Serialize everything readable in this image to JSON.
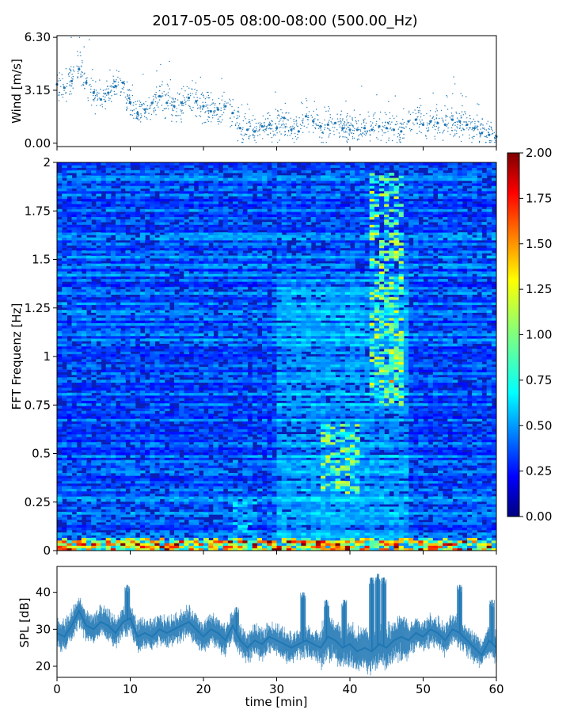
{
  "title": "2017-05-05 08:00-08:00 (500.00_Hz)",
  "chart_data": [
    {
      "type": "scatter",
      "name": "wind",
      "ylabel": "Wind [m/s]",
      "ylim": [
        -0.2,
        6.4
      ],
      "yticks": [
        0.0,
        3.15,
        6.3
      ],
      "ytick_labels": [
        "0.00",
        "3.15",
        "6.30"
      ],
      "xlim": [
        0,
        60
      ],
      "color": "#1f77b4",
      "x": [
        0,
        1,
        2,
        3,
        4,
        5,
        6,
        7,
        8,
        9,
        10,
        11,
        12,
        13,
        14,
        15,
        16,
        17,
        18,
        19,
        20,
        21,
        22,
        23,
        24,
        25,
        26,
        27,
        28,
        29,
        30,
        31,
        32,
        33,
        34,
        35,
        36,
        37,
        38,
        39,
        40,
        41,
        42,
        43,
        44,
        45,
        46,
        47,
        48,
        49,
        50,
        51,
        52,
        53,
        54,
        55,
        56,
        57,
        58,
        59,
        60
      ],
      "y": [
        3.5,
        3.3,
        3.7,
        4.4,
        3.6,
        3.0,
        2.6,
        3.0,
        3.4,
        3.6,
        2.4,
        1.8,
        2.0,
        2.4,
        2.8,
        2.4,
        2.2,
        2.4,
        2.7,
        2.5,
        2.2,
        1.9,
        2.0,
        2.2,
        1.8,
        0.9,
        0.8,
        0.7,
        1.0,
        1.1,
        0.9,
        1.5,
        0.8,
        0.7,
        1.6,
        1.3,
        1.0,
        1.1,
        1.2,
        0.9,
        0.8,
        0.8,
        0.9,
        0.8,
        1.0,
        0.9,
        0.8,
        0.7,
        1.3,
        1.4,
        1.1,
        1.3,
        1.2,
        1.1,
        1.4,
        1.3,
        1.1,
        0.9,
        0.6,
        0.5,
        0.4
      ]
    },
    {
      "type": "heatmap",
      "name": "fft-spectrogram",
      "ylabel": "FFT Frequenz [Hz]",
      "ylim": [
        0,
        2
      ],
      "yticks": [
        0,
        0.25,
        0.5,
        0.75,
        1,
        1.25,
        1.5,
        1.75,
        2
      ],
      "ytick_labels": [
        "0",
        "0.25",
        "0.5",
        "0.75",
        "1",
        "1.25",
        "1.5",
        "1.75",
        "2"
      ],
      "xlim": [
        0,
        60
      ],
      "colormap": "jet",
      "colorbar": {
        "range": [
          0,
          2
        ],
        "ticks": [
          "0.00",
          "0.25",
          "0.50",
          "0.75",
          "1.00",
          "1.25",
          "1.50",
          "1.75",
          "2.00"
        ]
      },
      "hotspots": [
        {
          "t": [
            36,
            41
          ],
          "f": [
            0.3,
            0.65
          ],
          "level": 0.95
        },
        {
          "t": [
            43,
            47
          ],
          "f": [
            0.75,
            1.95
          ],
          "level": 1.0
        },
        {
          "t": [
            44,
            46
          ],
          "f": [
            0.85,
            0.95
          ],
          "level": 1.3
        },
        {
          "t": [
            24,
            27
          ],
          "f": [
            0.0,
            0.25
          ],
          "level": 0.55
        },
        {
          "t": [
            0,
            60
          ],
          "f": [
            0.0,
            0.06
          ],
          "level": 1.2
        }
      ]
    },
    {
      "type": "line",
      "name": "spl",
      "ylabel": "SPL [dB]",
      "xlabel": "time [min]",
      "xlim": [
        0,
        60
      ],
      "ylim": [
        17,
        47
      ],
      "yticks": [
        20,
        30,
        40
      ],
      "ytick_labels": [
        "20",
        "30",
        "40"
      ],
      "xticks": [
        0,
        10,
        20,
        30,
        40,
        50,
        60
      ],
      "xtick_labels": [
        "0",
        "10",
        "20",
        "30",
        "40",
        "50",
        "60"
      ],
      "color": "#1f77b4",
      "x": [
        0,
        1,
        2,
        3,
        4,
        5,
        6,
        7,
        8,
        9,
        10,
        11,
        12,
        13,
        14,
        15,
        16,
        17,
        18,
        19,
        20,
        21,
        22,
        23,
        24,
        25,
        26,
        27,
        28,
        29,
        30,
        31,
        32,
        33,
        34,
        35,
        36,
        37,
        38,
        39,
        40,
        41,
        42,
        43,
        44,
        45,
        46,
        47,
        48,
        49,
        50,
        51,
        52,
        53,
        54,
        55,
        56,
        57,
        58,
        59,
        60
      ],
      "y": [
        29,
        28,
        31,
        35,
        31,
        30,
        32,
        31,
        29,
        32,
        33,
        28,
        29,
        28,
        30,
        29,
        30,
        31,
        32,
        30,
        28,
        30,
        29,
        27,
        31,
        27,
        25,
        27,
        26,
        28,
        27,
        26,
        25,
        26,
        27,
        26,
        25,
        28,
        27,
        25,
        26,
        24,
        25,
        24,
        26,
        25,
        27,
        28,
        27,
        29,
        28,
        30,
        29,
        27,
        30,
        29,
        27,
        25,
        23,
        27,
        25
      ],
      "spikes": [
        {
          "x": 9.6,
          "peak": 42
        },
        {
          "x": 24.5,
          "peak": 36
        },
        {
          "x": 33.6,
          "peak": 40
        },
        {
          "x": 36.8,
          "peak": 38
        },
        {
          "x": 39.2,
          "peak": 38
        },
        {
          "x": 43.0,
          "peak": 44
        },
        {
          "x": 43.8,
          "peak": 45
        },
        {
          "x": 44.6,
          "peak": 44
        },
        {
          "x": 55.0,
          "peak": 42
        },
        {
          "x": 59.4,
          "peak": 38
        }
      ]
    }
  ]
}
